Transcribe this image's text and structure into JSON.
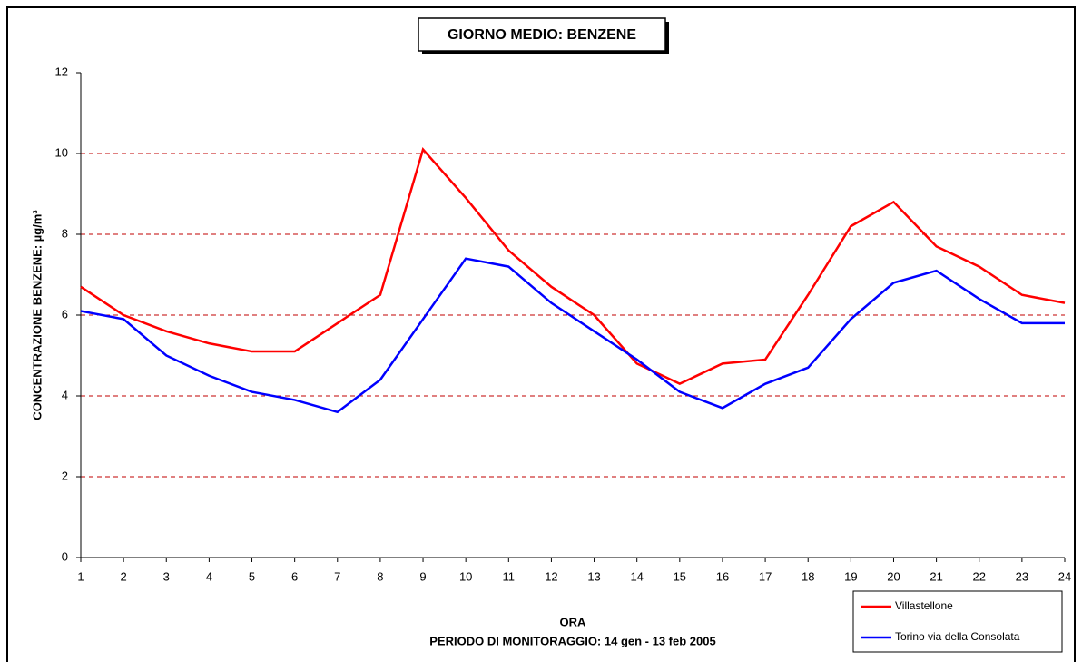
{
  "chart_data": {
    "type": "line",
    "title": "GIORNO MEDIO: BENZENE",
    "x_label": "ORA",
    "subtitle": "PERIODO DI MONITORAGGIO: 14 gen - 13 feb 2005",
    "y_label": "CONCENTRAZIONE BENZENE: µg/m³",
    "x": [
      1,
      2,
      3,
      4,
      5,
      6,
      7,
      8,
      9,
      10,
      11,
      12,
      13,
      14,
      15,
      16,
      17,
      18,
      19,
      20,
      21,
      22,
      23,
      24
    ],
    "xlim": [
      1,
      24
    ],
    "xticks": [
      1,
      2,
      3,
      4,
      5,
      6,
      7,
      8,
      9,
      10,
      11,
      12,
      13,
      14,
      15,
      16,
      17,
      18,
      19,
      20,
      21,
      22,
      23,
      24
    ],
    "ylim": [
      0,
      12
    ],
    "yticks": [
      0,
      2,
      4,
      6,
      8,
      10,
      12
    ],
    "grid": true,
    "grid_color": "#c00000",
    "legend": "lower right",
    "series": [
      {
        "name": "Villastellone",
        "color": "#ff0000",
        "values": [
          6.7,
          6.0,
          5.6,
          5.3,
          5.1,
          5.1,
          5.8,
          6.5,
          10.1,
          8.9,
          7.6,
          6.7,
          6.0,
          4.8,
          4.3,
          4.8,
          4.9,
          6.5,
          8.2,
          8.8,
          7.7,
          7.2,
          6.5,
          6.3
        ]
      },
      {
        "name": "Torino via della Consolata",
        "color": "#0000ff",
        "values": [
          6.1,
          5.9,
          5.0,
          4.5,
          4.1,
          3.9,
          3.6,
          4.4,
          5.9,
          7.4,
          7.2,
          6.3,
          5.6,
          4.9,
          4.1,
          3.7,
          4.3,
          4.7,
          5.9,
          6.8,
          7.1,
          6.4,
          5.8,
          5.8
        ]
      }
    ]
  }
}
